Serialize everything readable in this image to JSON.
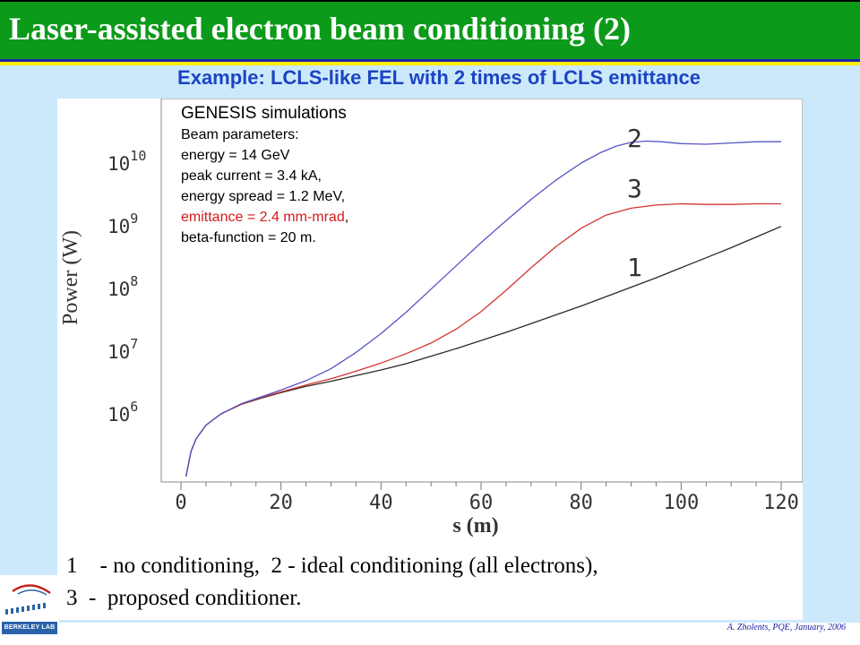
{
  "slide": {
    "title": "Laser-assisted electron beam conditioning (2)",
    "subtitle": "Example: LCLS-like FEL with 2 times of LCLS emittance",
    "caption_line1": "1    - no conditioning,  2 - ideal conditioning (all electrons),",
    "caption_line2": "3  -  proposed conditioner.",
    "credit": "A. Zholents, PQE, January, 2006",
    "logo_text": "BERKELEY LAB"
  },
  "annotation": {
    "heading": "GENESIS simulations",
    "line1": "Beam parameters:",
    "line2": "energy = 14 GeV",
    "line3": "peak current = 3.4 kA,",
    "line4": "energy spread = 1.2 MeV,",
    "line5_red": "emittance = 2.4 mm-mrad",
    "line5_tail": ",",
    "line6": "beta-function = 20 m."
  },
  "colors": {
    "title_green": "#0c9a1a",
    "subtitle_blue": "#1c44c4",
    "content_bg": "#cce9fb",
    "curve1": "#2a2a2a",
    "curve2": "#5454c4",
    "curve3": "#d23434",
    "emittance_red": "#d41a1a"
  },
  "chart_data": {
    "type": "line",
    "xlabel": "s  (m)",
    "ylabel": "Power   (W)",
    "yscale": "log",
    "xlim": [
      0,
      120
    ],
    "ylim_log10": [
      5.1,
      10.75
    ],
    "x_ticks": [
      0,
      20,
      40,
      60,
      80,
      100,
      120
    ],
    "x_tick_labels": [
      "0",
      "20",
      "40",
      "60",
      "80",
      "100",
      "120"
    ],
    "y_ticks_log10": [
      6,
      7,
      8,
      9,
      10
    ],
    "y_tick_labels": [
      {
        "base": "10",
        "exp": "6"
      },
      {
        "base": "10",
        "exp": "7"
      },
      {
        "base": "10",
        "exp": "8"
      },
      {
        "base": "10",
        "exp": "9"
      },
      {
        "base": "10",
        "exp": "10"
      }
    ],
    "series": [
      {
        "name": "1",
        "color": "#2a2a2a",
        "x": [
          1,
          2,
          3,
          5,
          8,
          12,
          16,
          20,
          25,
          30,
          35,
          40,
          45,
          50,
          55,
          60,
          65,
          70,
          75,
          80,
          85,
          90,
          95,
          100,
          105,
          110,
          115,
          120
        ],
        "log10_y": [
          5.0,
          5.4,
          5.6,
          5.82,
          6.0,
          6.15,
          6.25,
          6.34,
          6.44,
          6.52,
          6.61,
          6.7,
          6.8,
          6.92,
          7.04,
          7.17,
          7.3,
          7.44,
          7.58,
          7.72,
          7.87,
          8.02,
          8.17,
          8.33,
          8.49,
          8.65,
          8.82,
          8.99
        ]
      },
      {
        "name": "2",
        "color": "#5454c4",
        "x": [
          1,
          2,
          3,
          5,
          8,
          12,
          16,
          20,
          25,
          30,
          35,
          40,
          45,
          50,
          55,
          60,
          65,
          70,
          75,
          80,
          84,
          87,
          90,
          93,
          96,
          100,
          105,
          110,
          115,
          120
        ],
        "log10_y": [
          5.0,
          5.4,
          5.6,
          5.82,
          6.0,
          6.16,
          6.27,
          6.38,
          6.53,
          6.72,
          6.98,
          7.28,
          7.62,
          7.99,
          8.36,
          8.73,
          9.08,
          9.42,
          9.73,
          10.0,
          10.17,
          10.27,
          10.33,
          10.35,
          10.34,
          10.31,
          10.3,
          10.32,
          10.34,
          10.34
        ]
      },
      {
        "name": "3",
        "color": "#d23434",
        "x": [
          1,
          2,
          3,
          5,
          8,
          12,
          16,
          20,
          25,
          30,
          35,
          40,
          45,
          50,
          55,
          60,
          65,
          70,
          75,
          80,
          85,
          90,
          95,
          100,
          105,
          110,
          115,
          120
        ],
        "log10_y": [
          5.0,
          5.4,
          5.6,
          5.82,
          6.0,
          6.15,
          6.26,
          6.35,
          6.46,
          6.56,
          6.68,
          6.81,
          6.96,
          7.13,
          7.35,
          7.63,
          7.97,
          8.33,
          8.67,
          8.96,
          9.17,
          9.28,
          9.33,
          9.35,
          9.34,
          9.34,
          9.35,
          9.35
        ]
      }
    ],
    "series_labels": [
      "1",
      "2",
      "3"
    ]
  }
}
